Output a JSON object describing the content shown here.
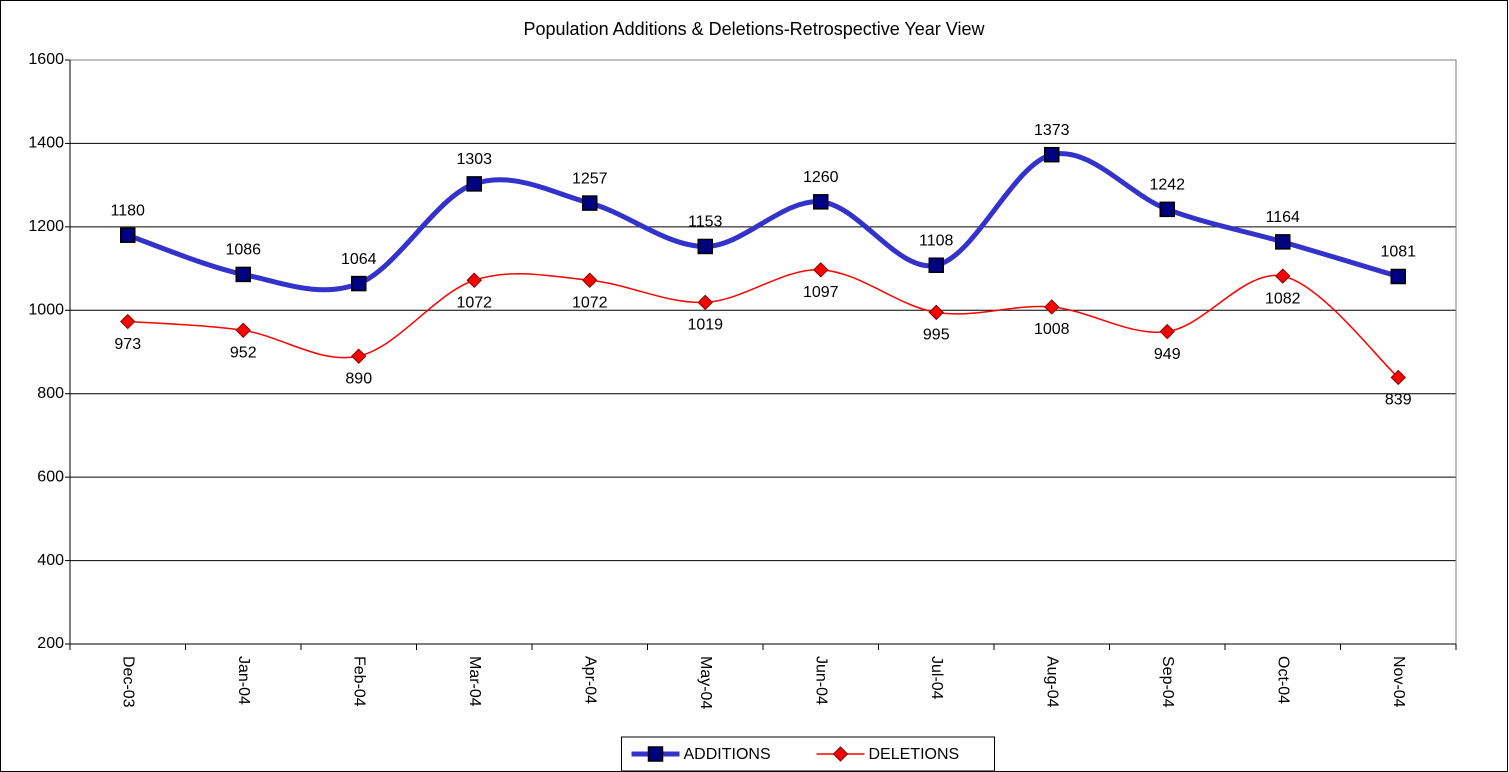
{
  "chart_data": {
    "type": "line",
    "title": "Population Additions & Deletions-Retrospective Year View",
    "categories": [
      "Dec-03",
      "Jan-04",
      "Feb-04",
      "Mar-04",
      "Apr-04",
      "May-04",
      "Jun-04",
      "Jul-04",
      "Aug-04",
      "Sep-04",
      "Oct-04",
      "Nov-04"
    ],
    "series": [
      {
        "name": "ADDITIONS",
        "color": "#3333cc",
        "values": [
          1180,
          1086,
          1064,
          1303,
          1257,
          1153,
          1260,
          1108,
          1373,
          1242,
          1164,
          1081
        ]
      },
      {
        "name": "DELETIONS",
        "color": "#ff0000",
        "values": [
          973,
          952,
          890,
          1072,
          1072,
          1019,
          1097,
          995,
          1008,
          949,
          1082,
          839
        ]
      }
    ],
    "ylim": [
      200,
      1600
    ],
    "yticks": [
      200,
      400,
      600,
      800,
      1000,
      1200,
      1400,
      1600
    ],
    "grid": true,
    "smooth": true,
    "legend": "bottom"
  }
}
